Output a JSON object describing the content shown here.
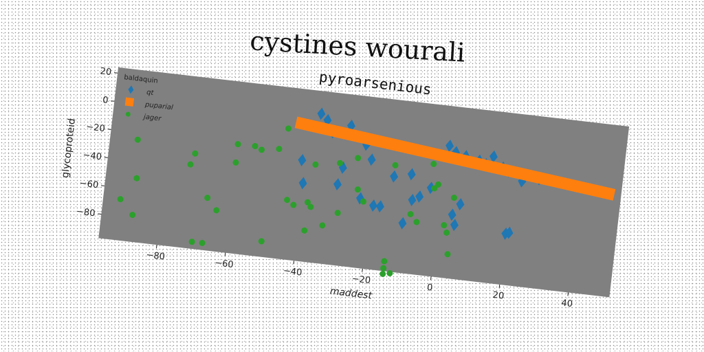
{
  "chart_data": {
    "type": "scatter",
    "suptitle": "cystines wourali",
    "title": "pyroarsenious",
    "xlabel": "maddest",
    "ylabel": "glycoproteid",
    "xlim": [
      -97,
      52
    ],
    "ylim": [
      -97,
      24
    ],
    "xticks": [
      -80,
      -60,
      -40,
      -20,
      0,
      20,
      40
    ],
    "yticks": [
      20,
      0,
      -20,
      -40,
      -60,
      -80
    ],
    "grid": false,
    "background": "#808080",
    "legend": {
      "title": "baldaquin",
      "placement": "upper-left"
    },
    "series": [
      {
        "name": "qt",
        "marker": "diamond",
        "color": "#1f77b4",
        "points": [
          [
            -37,
            8
          ],
          [
            -35,
            4
          ],
          [
            -33,
            -4
          ],
          [
            -28,
            2
          ],
          [
            -23,
            -10
          ],
          [
            -21,
            -20
          ],
          [
            -14,
            -30
          ],
          [
            -9,
            -27
          ],
          [
            -41,
            -26
          ],
          [
            -40,
            -42
          ],
          [
            -23,
            -48
          ],
          [
            -19,
            -52
          ],
          [
            -17,
            -52
          ],
          [
            -6,
            -42
          ],
          [
            -10,
            -62
          ],
          [
            -8,
            -45
          ],
          [
            -3,
            -35
          ],
          [
            1,
            -4
          ],
          [
            3,
            -8
          ],
          [
            6,
            -10
          ],
          [
            10,
            -12
          ],
          [
            14,
            -8
          ],
          [
            12,
            -14
          ],
          [
            17,
            -15
          ],
          [
            19,
            -17
          ],
          [
            23,
            -23
          ],
          [
            23,
            -20
          ],
          [
            28,
            -20
          ],
          [
            4,
            -52
          ],
          [
            5,
            -59
          ],
          [
            6,
            -44
          ],
          [
            -29,
            -28
          ],
          [
            -30,
            -40
          ],
          [
            20,
            -61
          ],
          [
            21,
            -60
          ]
        ]
      },
      {
        "name": "puparial",
        "marker": "band",
        "color": "#ff7f0e",
        "points": [
          [
            -44,
            0
          ],
          [
            50,
            -25
          ]
        ]
      },
      {
        "name": "jager",
        "marker": "circle",
        "color": "#2ca02c",
        "points": [
          [
            -89,
            -25
          ],
          [
            -88,
            -52
          ],
          [
            -92,
            -68
          ],
          [
            -88,
            -78
          ],
          [
            -73,
            -38
          ],
          [
            -72,
            -30
          ],
          [
            -70,
            -92
          ],
          [
            -67,
            -92
          ],
          [
            -67,
            -60
          ],
          [
            -64,
            -68
          ],
          [
            -60,
            -20
          ],
          [
            -60,
            -33
          ],
          [
            -55,
            -20
          ],
          [
            -53,
            -22
          ],
          [
            -48,
            -20
          ],
          [
            -46,
            -5
          ],
          [
            -50,
            -86
          ],
          [
            -44,
            -55
          ],
          [
            -42,
            -58
          ],
          [
            -38,
            -55
          ],
          [
            -37,
            -28
          ],
          [
            -37,
            -58
          ],
          [
            -38,
            -75
          ],
          [
            -33,
            -70
          ],
          [
            -30,
            -25
          ],
          [
            -29,
            -60
          ],
          [
            -25,
            -20
          ],
          [
            -24,
            -42
          ],
          [
            -22,
            -50
          ],
          [
            -14,
            -22
          ],
          [
            -14,
            -90
          ],
          [
            -14,
            -95
          ],
          [
            -14,
            -99
          ],
          [
            -12,
            -98
          ],
          [
            -8,
            -55
          ],
          [
            -6,
            -60
          ],
          [
            -2,
            -35
          ],
          [
            -3,
            -18
          ],
          [
            -1,
            -32
          ],
          [
            2,
            -60
          ],
          [
            3,
            -65
          ],
          [
            4,
            -80
          ],
          [
            4,
            -40
          ]
        ]
      }
    ]
  }
}
